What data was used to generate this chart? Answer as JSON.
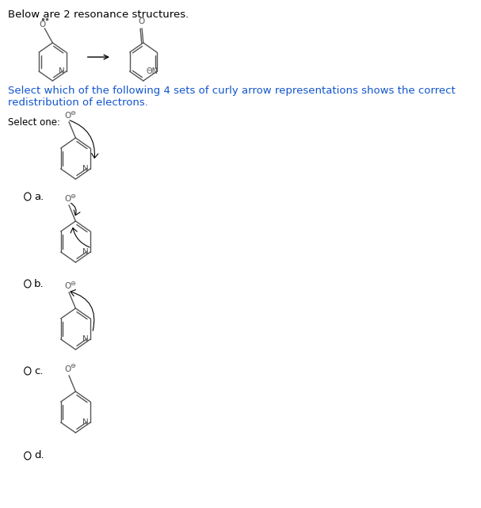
{
  "title_text": "Below are 2 resonance structures.",
  "question_text": "Select which of the following 4 sets of curly arrow representations shows the correct\nredistribution of electrons.",
  "select_text": "Select one:",
  "options": [
    "a.",
    "b.",
    "c.",
    "d."
  ],
  "bg_color": "#ffffff",
  "text_color": "#000000",
  "question_color": "#1155cc",
  "option_color": "#000000",
  "structure_color": "#555555",
  "arrow_color": "#000000",
  "curly_color": "#000000",
  "font_size_title": 9.5,
  "font_size_question": 9.5,
  "font_size_select": 8.5,
  "font_size_option": 9.5
}
